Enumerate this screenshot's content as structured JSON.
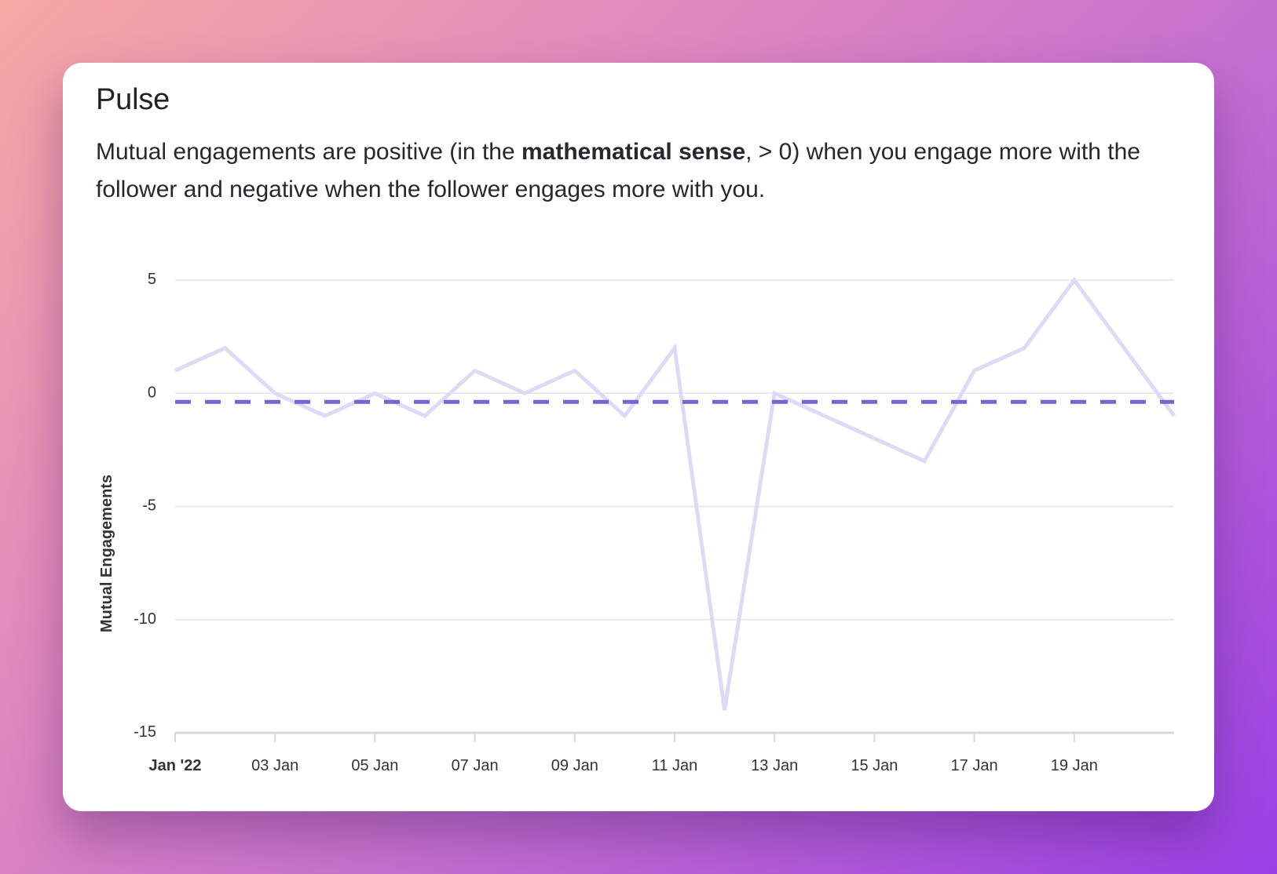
{
  "card": {
    "title": "Pulse",
    "description_before": "Mutual engagements are positive (in the ",
    "description_bold": "mathematical sense",
    "description_after": ", > 0) when you engage more with the follower and negative when the follower engages more with you."
  },
  "chart_data": {
    "type": "line",
    "title": "",
    "xlabel": "",
    "ylabel": "Mutual Engagements",
    "x": [
      "2022-01-01",
      "2022-01-02",
      "2022-01-03",
      "2022-01-04",
      "2022-01-05",
      "2022-01-06",
      "2022-01-07",
      "2022-01-08",
      "2022-01-09",
      "2022-01-10",
      "2022-01-11",
      "2022-01-12",
      "2022-01-13",
      "2022-01-14",
      "2022-01-15",
      "2022-01-16",
      "2022-01-17",
      "2022-01-18",
      "2022-01-19",
      "2022-01-20",
      "2022-01-21"
    ],
    "series": [
      {
        "values": [
          1,
          2,
          0,
          -1,
          0,
          -1,
          1,
          0,
          1,
          -1,
          2,
          -14,
          0,
          -1,
          -2,
          -3,
          1,
          2,
          5,
          2,
          -1
        ],
        "color": "#dcdaf5"
      }
    ],
    "reference_line": {
      "value": -0.38,
      "color": "#7b61d1",
      "style": "dashed"
    },
    "ylim": [
      -15,
      5
    ],
    "yticks": [
      5,
      0,
      -5,
      -10,
      -15
    ],
    "yticklabels": [
      "5",
      "0",
      "-5",
      "-10",
      "-15"
    ],
    "xticks": [
      "2022-01-01",
      "2022-01-03",
      "2022-01-05",
      "2022-01-07",
      "2022-01-09",
      "2022-01-11",
      "2022-01-13",
      "2022-01-15",
      "2022-01-17",
      "2022-01-19"
    ],
    "xticklabels": [
      "Jan '22",
      "03 Jan",
      "05 Jan",
      "07 Jan",
      "09 Jan",
      "11 Jan",
      "13 Jan",
      "15 Jan",
      "17 Jan",
      "19 Jan"
    ],
    "grid": true,
    "gridColor": "#e3e3e3",
    "axisColor": "#d8d8dc"
  }
}
